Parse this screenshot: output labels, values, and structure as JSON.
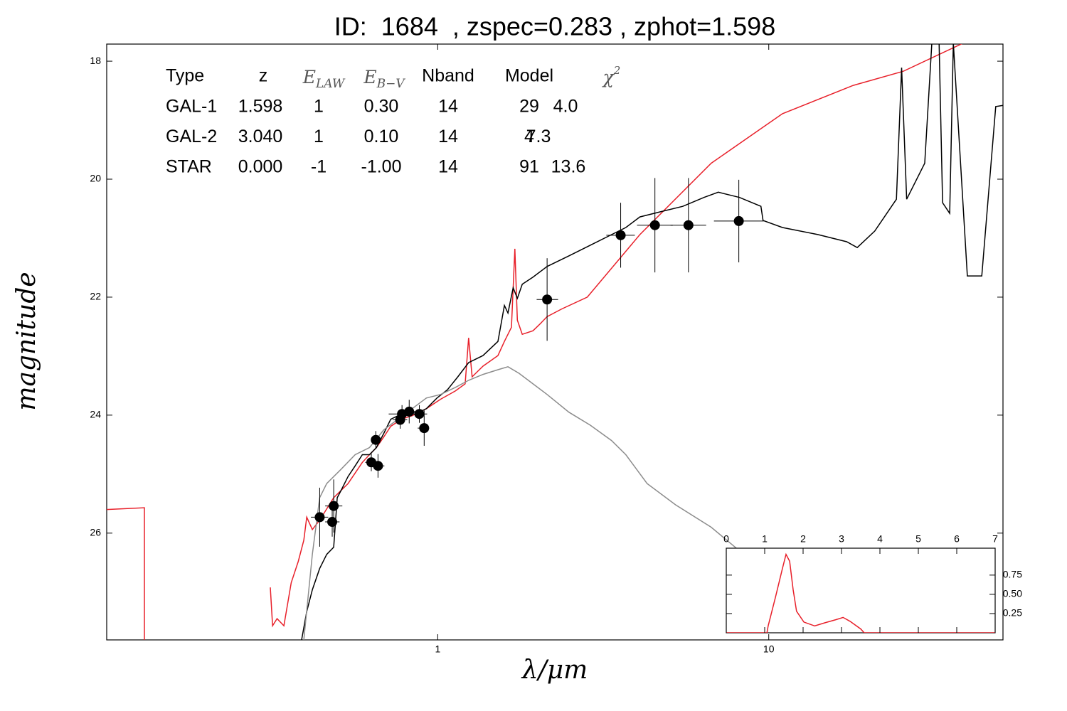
{
  "chart_data": [
    {
      "type": "line",
      "title": "ID:  1684  , zspec=0.283 , zphot=1.598",
      "xlabel": "λ/μm",
      "ylabel": "magnitude",
      "xscale": "log",
      "xlim": [
        0.1,
        51
      ],
      "xticks": [
        1,
        10
      ],
      "ylim": [
        27.81,
        17.71
      ],
      "yticks": [
        18,
        20,
        22,
        24,
        26
      ],
      "series": [
        {
          "color": "#e8202a",
          "x": [
            0.1,
            0.13,
            0.13,
            null,
            0.312,
            0.317,
            0.327,
            0.343,
            0.361,
            0.379,
            0.394,
            0.402,
            0.418,
            0.44,
            0.485,
            0.536,
            0.592,
            0.622,
            0.653,
            0.687,
            0.721,
            0.777,
            0.837,
            0.924,
            1.02,
            1.13,
            1.21,
            1.24,
            1.27,
            1.37,
            1.52,
            1.59,
            1.67,
            1.71,
            1.74,
            1.8,
            1.94,
            2.04,
            2.14,
            2.37,
            2.83,
            4.08,
            6.7,
            11.0,
            18.0,
            25.5,
            39.8
          ],
          "values": [
            25.6,
            25.57,
            28.5,
            null,
            26.92,
            27.57,
            27.45,
            27.57,
            26.84,
            26.48,
            26.12,
            25.73,
            25.94,
            25.78,
            25.4,
            25.16,
            24.8,
            24.67,
            24.55,
            24.37,
            24.19,
            24.07,
            24.01,
            23.89,
            23.73,
            23.59,
            23.47,
            22.69,
            23.35,
            23.17,
            22.99,
            22.75,
            22.51,
            21.18,
            22.39,
            22.63,
            22.57,
            22.45,
            22.33,
            22.2,
            22.0,
            20.94,
            19.73,
            18.89,
            18.41,
            18.17,
            17.66
          ]
        },
        {
          "color": "#000000",
          "x": [
            0.388,
            0.402,
            0.418,
            0.44,
            0.462,
            0.485,
            0.497,
            0.51,
            0.536,
            0.563,
            0.592,
            0.622,
            0.653,
            0.687,
            0.721,
            0.758,
            0.816,
            0.879,
            0.924,
            0.995,
            1.07,
            1.15,
            1.24,
            1.37,
            1.52,
            1.59,
            1.63,
            1.69,
            1.74,
            1.8,
            1.94,
            2.14,
            2.49,
            2.89,
            3.35,
            3.7,
            4.08,
            4.73,
            5.5,
            6.37,
            7.04,
            8.16,
            9.47,
            9.61,
            11.0,
            14.1,
            17.2,
            18.5,
            20.9,
            24.3,
            25.2,
            26.1,
            29.6,
            31.1,
            32.7,
            33.5,
            35.2,
            36.1,
            39.8,
            44.0,
            48.5,
            51.0
          ],
          "values": [
            27.81,
            27.33,
            26.96,
            26.6,
            26.36,
            26.24,
            25.4,
            25.28,
            25.04,
            24.86,
            24.67,
            24.67,
            24.55,
            24.31,
            24.07,
            24.01,
            23.95,
            23.95,
            23.89,
            23.71,
            23.57,
            23.35,
            23.11,
            22.99,
            22.75,
            22.14,
            22.27,
            21.84,
            22.02,
            21.78,
            21.66,
            21.48,
            21.3,
            21.12,
            20.94,
            20.82,
            20.64,
            20.55,
            20.46,
            20.31,
            20.22,
            20.31,
            20.46,
            20.7,
            20.82,
            20.94,
            21.06,
            21.16,
            20.88,
            20.34,
            18.11,
            20.34,
            19.73,
            17.69,
            17.69,
            20.4,
            20.58,
            17.69,
            21.64,
            21.64,
            18.77,
            18.75
          ]
        },
        {
          "color": "#8c8c8c",
          "x": [
            0.394,
            0.418,
            0.44,
            0.462,
            0.51,
            0.563,
            0.622,
            0.687,
            0.758,
            0.837,
            0.924,
            1.02,
            1.13,
            1.24,
            1.37,
            1.52,
            1.63,
            1.76,
            1.94,
            2.14,
            2.49,
            2.89,
            3.35,
            3.7,
            4.29,
            5.23,
            6.7,
            8.16
          ],
          "values": [
            27.81,
            26.36,
            25.4,
            25.16,
            24.92,
            24.67,
            24.55,
            24.25,
            24.07,
            23.89,
            23.71,
            23.65,
            23.53,
            23.41,
            23.31,
            23.23,
            23.18,
            23.29,
            23.47,
            23.65,
            23.95,
            24.17,
            24.43,
            24.67,
            25.16,
            25.52,
            25.9,
            26.3
          ]
        }
      ],
      "points": {
        "color": "#000000",
        "x": [
          0.44,
          0.48,
          0.485,
          0.63,
          0.66,
          0.65,
          0.77,
          0.78,
          0.82,
          0.88,
          0.91,
          2.14,
          3.57,
          4.53,
          5.72,
          8.12
        ],
        "values": [
          25.73,
          25.81,
          25.54,
          24.8,
          24.86,
          24.42,
          24.08,
          23.98,
          23.94,
          23.98,
          24.22,
          22.04,
          20.95,
          20.78,
          20.78,
          20.71
        ],
        "yerr": [
          0.5,
          0.25,
          0.45,
          0.15,
          0.2,
          0.15,
          0.15,
          0.15,
          0.2,
          0.15,
          0.3,
          0.7,
          0.55,
          0.8,
          0.8,
          0.7
        ],
        "x_lo": [
          0.414,
          0.457,
          0.457,
          0.604,
          0.637,
          0.634,
          0.732,
          0.711,
          0.758,
          0.841,
          0.87,
          1.99,
          3.23,
          4.0,
          5.05,
          6.83
        ],
        "x_hi": [
          0.467,
          0.505,
          0.515,
          0.653,
          0.69,
          0.673,
          0.809,
          0.867,
          0.879,
          0.929,
          0.942,
          2.31,
          3.94,
          5.13,
          6.47,
          9.66
        ]
      }
    },
    {
      "type": "line",
      "xlim": [
        0,
        7
      ],
      "xticks": [
        0,
        1,
        2,
        3,
        4,
        5,
        6,
        7
      ],
      "ylim": [
        0,
        1.1
      ],
      "yticks": [
        0.25,
        {
          "value": 0.5,
          "label": "0.50"
        },
        0.75
      ],
      "series": [
        {
          "color": "#e8202a",
          "x": [
            0,
            1.06,
            1.09,
            1.28,
            1.46,
            1.556,
            1.65,
            1.74,
            1.83,
            2.02,
            2.3,
            2.57,
            2.85,
            3.04,
            3.22,
            3.5,
            3.59,
            7.0
          ],
          "values": [
            0,
            0,
            0.09,
            0.46,
            0.83,
            1.02,
            0.93,
            0.56,
            0.28,
            0.14,
            0.09,
            0.13,
            0.17,
            0.2,
            0.15,
            0.05,
            0,
            0
          ]
        }
      ]
    }
  ],
  "table": {
    "header": [
      "Type",
      "z",
      {
        "base": "E",
        "sub": "LAW"
      },
      {
        "base": "E",
        "sub": "B−V"
      },
      "Nband",
      "Model",
      {
        "base": "χ",
        "sup": "2"
      }
    ],
    "rows": [
      {
        "color": "#e8202a",
        "cells": [
          "GAL-1",
          "1.598",
          "1",
          "0.30",
          "14",
          "29",
          "4.0"
        ]
      },
      {
        "color": "#000000",
        "cells": [
          "GAL-2",
          "3.040",
          "1",
          "0.10",
          "14",
          "4",
          "7.3"
        ]
      },
      {
        "color": "#999999",
        "cells": [
          "STAR",
          "0.000",
          "-1",
          "-1.00",
          "14",
          "91",
          "13.6"
        ]
      }
    ]
  }
}
